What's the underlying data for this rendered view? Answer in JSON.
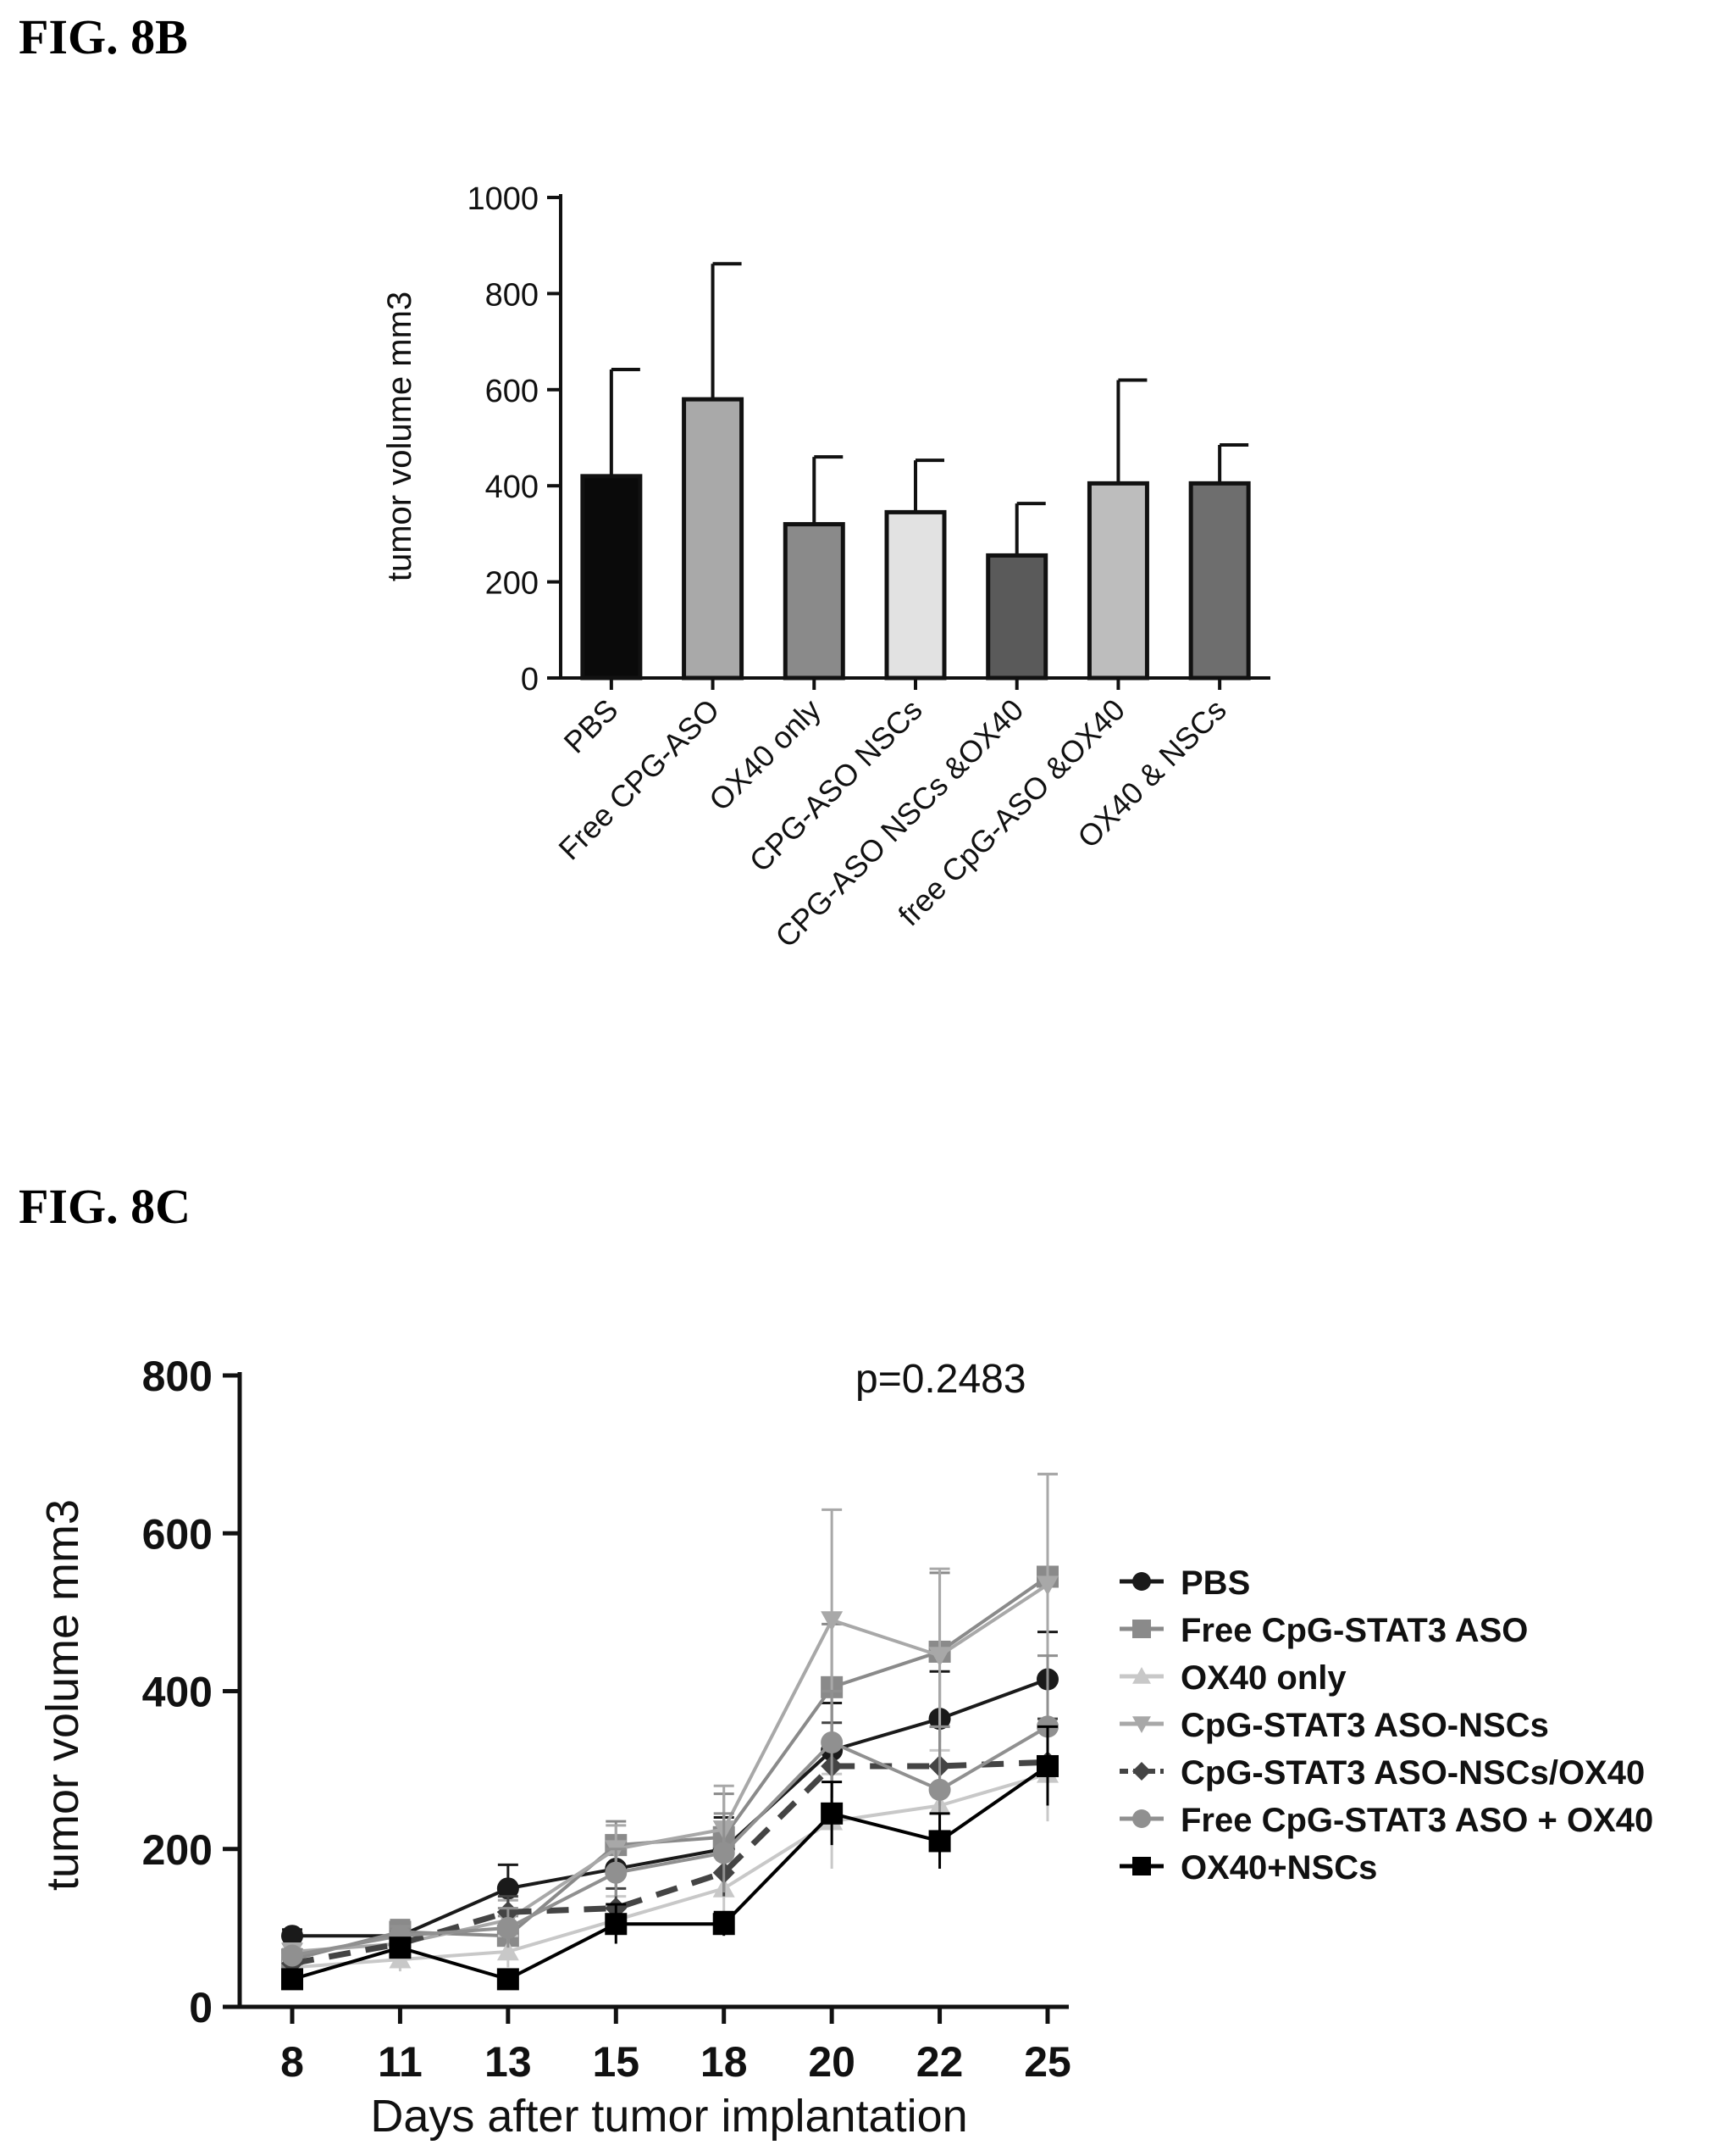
{
  "figures": {
    "fig8b": "FIG. 8B",
    "fig8c": "FIG. 8C"
  },
  "chart_data": [
    {
      "type": "bar",
      "ylabel": "tumor volume mm3",
      "ylim": [
        0,
        1000
      ],
      "yticks": [
        "0",
        "200",
        "400",
        "600",
        "800",
        "1000"
      ],
      "categories": [
        "PBS",
        "Free CPG-ASO",
        "OX40 only",
        "CPG-ASO NSCs",
        "CPG-ASO NSCs &OX40",
        "free CpG-ASO &OX40",
        "OX40 & NSCs"
      ],
      "values": [
        420,
        580,
        320,
        345,
        255,
        405,
        405
      ],
      "errors": [
        222,
        282,
        140,
        108,
        108,
        215,
        80
      ],
      "colors": [
        "#0a0a0a",
        "#a9a9a9",
        "#8a8a8a",
        "#e2e2e2",
        "#5a5a5a",
        "#bdbdbd",
        "#6e6e6e"
      ],
      "grid": false
    },
    {
      "type": "line",
      "annotation": "p=0.2483",
      "xlabel": "Days after tumor implantation",
      "ylabel": "tumor volume mm3",
      "x": [
        "8",
        "11",
        "13",
        "15",
        "18",
        "20",
        "22",
        "25"
      ],
      "ylim": [
        0,
        800
      ],
      "yticks": [
        "0",
        "200",
        "400",
        "600",
        "800"
      ],
      "legend_position": "right",
      "grid": false,
      "series": [
        {
          "name": "PBS",
          "values": [
            90,
            90,
            150,
            175,
            200,
            325,
            365,
            415
          ],
          "errors": [
            8,
            10,
            30,
            25,
            40,
            60,
            60,
            60
          ],
          "color": "#1a1a1a",
          "marker": "circle",
          "dash": false
        },
        {
          "name": "Free CpG-STAT3 ASO",
          "values": [
            60,
            95,
            90,
            205,
            215,
            405,
            450,
            545
          ],
          "errors": [
            10,
            15,
            25,
            30,
            55,
            80,
            100,
            130
          ],
          "color": "#8a8a8a",
          "marker": "square",
          "dash": false
        },
        {
          "name": "OX40 only",
          "values": [
            50,
            60,
            70,
            110,
            150,
            235,
            255,
            295
          ],
          "errors": [
            8,
            15,
            20,
            30,
            40,
            60,
            70,
            60
          ],
          "color": "#c8c8c8",
          "marker": "triangle-up",
          "dash": false
        },
        {
          "name": "CpG-STAT3 ASO-NSCs",
          "values": [
            70,
            80,
            110,
            200,
            225,
            490,
            445,
            535
          ],
          "errors": [
            10,
            15,
            25,
            30,
            55,
            140,
            110,
            140
          ],
          "color": "#a8a8a8",
          "marker": "triangle-down",
          "dash": false
        },
        {
          "name": "CpG-STAT3 ASO-NSCs/OX40",
          "values": [
            55,
            80,
            120,
            125,
            170,
            305,
            305,
            310
          ],
          "errors": [
            8,
            15,
            20,
            25,
            30,
            55,
            50,
            55
          ],
          "color": "#444444",
          "marker": "diamond",
          "dash": true
        },
        {
          "name": "Free CpG-STAT3 ASO + OX40",
          "values": [
            65,
            90,
            100,
            170,
            195,
            335,
            275,
            355
          ],
          "errors": [
            8,
            12,
            25,
            30,
            50,
            65,
            80,
            90
          ],
          "color": "#909090",
          "marker": "circle",
          "dash": false
        },
        {
          "name": "OX40+NSCs",
          "values": [
            35,
            75,
            35,
            105,
            105,
            245,
            210,
            305
          ],
          "errors": [
            6,
            10,
            10,
            25,
            15,
            40,
            35,
            50
          ],
          "color": "#000000",
          "marker": "square",
          "dash": false
        }
      ]
    }
  ]
}
